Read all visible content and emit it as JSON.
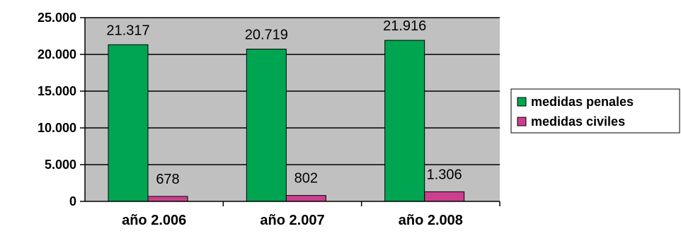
{
  "chart_data": {
    "type": "bar",
    "categories": [
      "año 2.006",
      "año 2.007",
      "año 2.008"
    ],
    "series": [
      {
        "name": "medidas penales",
        "values": [
          21317,
          20719,
          21916
        ],
        "labels": [
          "21.317",
          "20.719",
          "21.916"
        ],
        "color": "#00a551"
      },
      {
        "name": "medidas civiles",
        "values": [
          678,
          802,
          1306
        ],
        "labels": [
          "678",
          "802",
          "1.306"
        ],
        "color": "#cc3f8e"
      }
    ],
    "yticks": [
      0,
      5000,
      10000,
      15000,
      20000,
      25000
    ],
    "ytick_labels": [
      "0",
      "5.000",
      "10.000",
      "15.000",
      "20.000",
      "25.000"
    ],
    "ylim": [
      0,
      25000
    ],
    "grid": true,
    "plot_background": "#c0c0c0",
    "legend_position": "right",
    "title": "",
    "xlabel": "",
    "ylabel": ""
  }
}
